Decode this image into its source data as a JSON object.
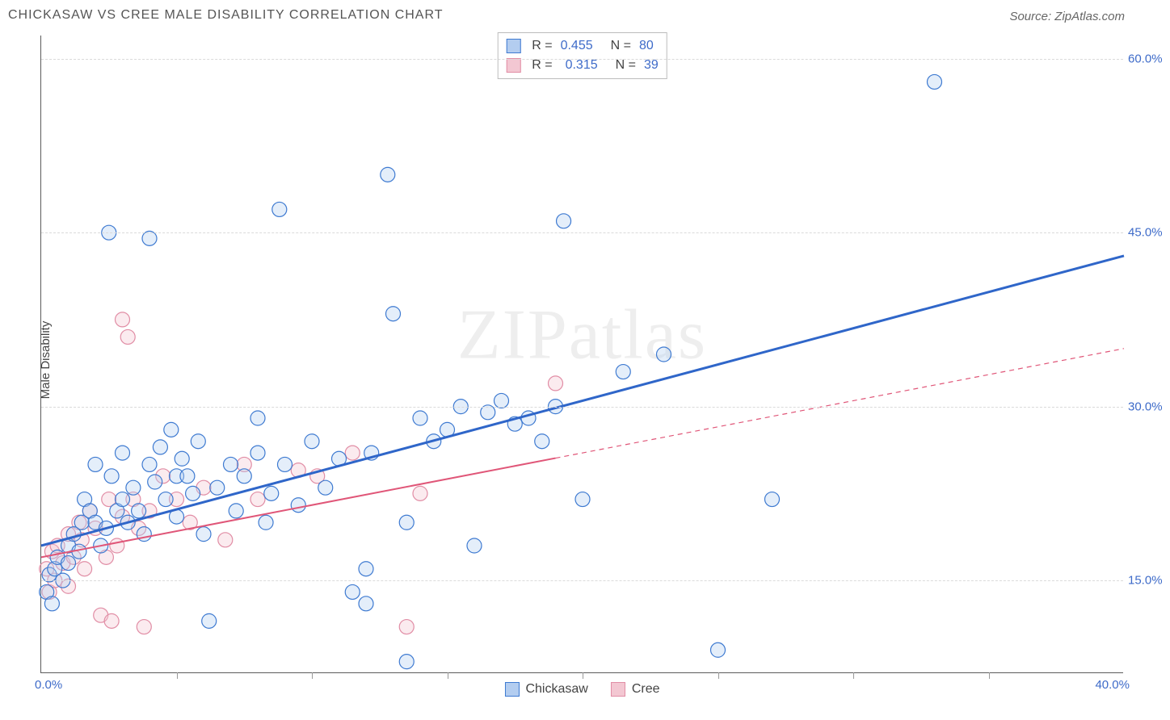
{
  "title": "CHICKASAW VS CREE MALE DISABILITY CORRELATION CHART",
  "source": "Source: ZipAtlas.com",
  "watermark": "ZIPatlas",
  "chart": {
    "type": "scatter",
    "ylabel": "Male Disability",
    "background_color": "#ffffff",
    "grid_color": "#dadada",
    "axis_color": "#5b5b5b",
    "label_color": "#3e6bc9",
    "text_color": "#444444",
    "title_fontsize": 16,
    "label_fontsize": 15,
    "x": {
      "min": 0.0,
      "max": 40.0,
      "tick_step": 5.0,
      "min_label": "0.0%",
      "max_label": "40.0%"
    },
    "y": {
      "min": 7.0,
      "max": 62.0,
      "ticks": [
        15.0,
        30.0,
        45.0,
        60.0
      ],
      "tick_labels": [
        "15.0%",
        "30.0%",
        "45.0%",
        "60.0%"
      ]
    },
    "marker": {
      "radius": 9,
      "stroke_width": 1.2,
      "fill_opacity": 0.35
    },
    "r_legend": {
      "rows": [
        {
          "swatch_fill": "#b3cdf0",
          "swatch_stroke": "#3e7ad1",
          "r_label": "R =",
          "r_value": "0.455",
          "n_label": "N =",
          "n_value": "80"
        },
        {
          "swatch_fill": "#f3c7d2",
          "swatch_stroke": "#e18da5",
          "r_label": "R =",
          "r_value": "0.315",
          "n_label": "N =",
          "n_value": "39"
        }
      ]
    },
    "series_legend": [
      {
        "swatch_fill": "#b3cdf0",
        "swatch_stroke": "#3e7ad1",
        "label": "Chickasaw"
      },
      {
        "swatch_fill": "#f3c7d2",
        "swatch_stroke": "#e18da5",
        "label": "Cree"
      }
    ],
    "series": [
      {
        "name": "Chickasaw",
        "color_fill": "#b3cdf0",
        "color_stroke": "#3e7ad1",
        "regression": {
          "x1": 0.0,
          "y1": 18.0,
          "x2": 40.0,
          "y2": 43.0,
          "stroke": "#2f66c9",
          "width": 3,
          "solid_until_x": 40.0
        },
        "points": [
          [
            0.2,
            14.0
          ],
          [
            0.3,
            15.5
          ],
          [
            0.4,
            13.0
          ],
          [
            0.5,
            16.0
          ],
          [
            0.6,
            17.0
          ],
          [
            0.8,
            15.0
          ],
          [
            1.0,
            16.5
          ],
          [
            1.0,
            18.0
          ],
          [
            1.2,
            19.0
          ],
          [
            1.4,
            17.5
          ],
          [
            1.5,
            20.0
          ],
          [
            1.6,
            22.0
          ],
          [
            1.8,
            21.0
          ],
          [
            2.0,
            25.0
          ],
          [
            2.0,
            20.0
          ],
          [
            2.2,
            18.0
          ],
          [
            2.4,
            19.5
          ],
          [
            2.5,
            45.0
          ],
          [
            2.6,
            24.0
          ],
          [
            2.8,
            21.0
          ],
          [
            3.0,
            22.0
          ],
          [
            3.0,
            26.0
          ],
          [
            3.2,
            20.0
          ],
          [
            3.4,
            23.0
          ],
          [
            3.6,
            21.0
          ],
          [
            3.8,
            19.0
          ],
          [
            4.0,
            44.5
          ],
          [
            4.0,
            25.0
          ],
          [
            4.2,
            23.5
          ],
          [
            4.4,
            26.5
          ],
          [
            4.6,
            22.0
          ],
          [
            4.8,
            28.0
          ],
          [
            5.0,
            24.0
          ],
          [
            5.0,
            20.5
          ],
          [
            5.2,
            25.5
          ],
          [
            5.4,
            24.0
          ],
          [
            5.6,
            22.5
          ],
          [
            5.8,
            27.0
          ],
          [
            6.0,
            19.0
          ],
          [
            6.2,
            11.5
          ],
          [
            6.5,
            23.0
          ],
          [
            7.0,
            25.0
          ],
          [
            7.2,
            21.0
          ],
          [
            7.5,
            24.0
          ],
          [
            8.0,
            26.0
          ],
          [
            8.0,
            29.0
          ],
          [
            8.3,
            20.0
          ],
          [
            8.5,
            22.5
          ],
          [
            8.8,
            47.0
          ],
          [
            9.0,
            25.0
          ],
          [
            9.5,
            21.5
          ],
          [
            10.0,
            27.0
          ],
          [
            10.5,
            23.0
          ],
          [
            11.0,
            25.5
          ],
          [
            11.5,
            14.0
          ],
          [
            12.0,
            16.0
          ],
          [
            12.0,
            13.0
          ],
          [
            12.2,
            26.0
          ],
          [
            12.8,
            50.0
          ],
          [
            13.0,
            38.0
          ],
          [
            13.5,
            8.0
          ],
          [
            14.0,
            29.0
          ],
          [
            14.5,
            27.0
          ],
          [
            15.0,
            28.0
          ],
          [
            15.5,
            30.0
          ],
          [
            16.0,
            18.0
          ],
          [
            16.5,
            29.5
          ],
          [
            17.0,
            30.5
          ],
          [
            17.5,
            28.5
          ],
          [
            18.0,
            29.0
          ],
          [
            18.5,
            27.0
          ],
          [
            19.0,
            30.0
          ],
          [
            19.3,
            46.0
          ],
          [
            20.0,
            22.0
          ],
          [
            21.5,
            33.0
          ],
          [
            23.0,
            34.5
          ],
          [
            25.0,
            9.0
          ],
          [
            27.0,
            22.0
          ],
          [
            33.0,
            58.0
          ],
          [
            13.5,
            20.0
          ]
        ]
      },
      {
        "name": "Cree",
        "color_fill": "#f3c7d2",
        "color_stroke": "#e18da5",
        "regression": {
          "x1": 0.0,
          "y1": 17.0,
          "x2": 40.0,
          "y2": 35.0,
          "stroke": "#e05678",
          "width": 2,
          "solid_until_x": 19.0
        },
        "points": [
          [
            0.2,
            16.0
          ],
          [
            0.3,
            14.0
          ],
          [
            0.4,
            17.5
          ],
          [
            0.5,
            15.0
          ],
          [
            0.6,
            18.0
          ],
          [
            0.8,
            16.5
          ],
          [
            1.0,
            14.5
          ],
          [
            1.0,
            19.0
          ],
          [
            1.2,
            17.0
          ],
          [
            1.4,
            20.0
          ],
          [
            1.5,
            18.5
          ],
          [
            1.6,
            16.0
          ],
          [
            1.8,
            21.0
          ],
          [
            2.0,
            19.5
          ],
          [
            2.2,
            12.0
          ],
          [
            2.4,
            17.0
          ],
          [
            2.5,
            22.0
          ],
          [
            2.6,
            11.5
          ],
          [
            2.8,
            18.0
          ],
          [
            3.0,
            20.5
          ],
          [
            3.0,
            37.5
          ],
          [
            3.2,
            36.0
          ],
          [
            3.4,
            22.0
          ],
          [
            3.6,
            19.5
          ],
          [
            3.8,
            11.0
          ],
          [
            4.0,
            21.0
          ],
          [
            4.5,
            24.0
          ],
          [
            5.0,
            22.0
          ],
          [
            5.5,
            20.0
          ],
          [
            6.0,
            23.0
          ],
          [
            6.8,
            18.5
          ],
          [
            7.5,
            25.0
          ],
          [
            8.0,
            22.0
          ],
          [
            9.5,
            24.5
          ],
          [
            10.2,
            24.0
          ],
          [
            11.5,
            26.0
          ],
          [
            13.5,
            11.0
          ],
          [
            14.0,
            22.5
          ],
          [
            19.0,
            32.0
          ]
        ]
      }
    ]
  }
}
